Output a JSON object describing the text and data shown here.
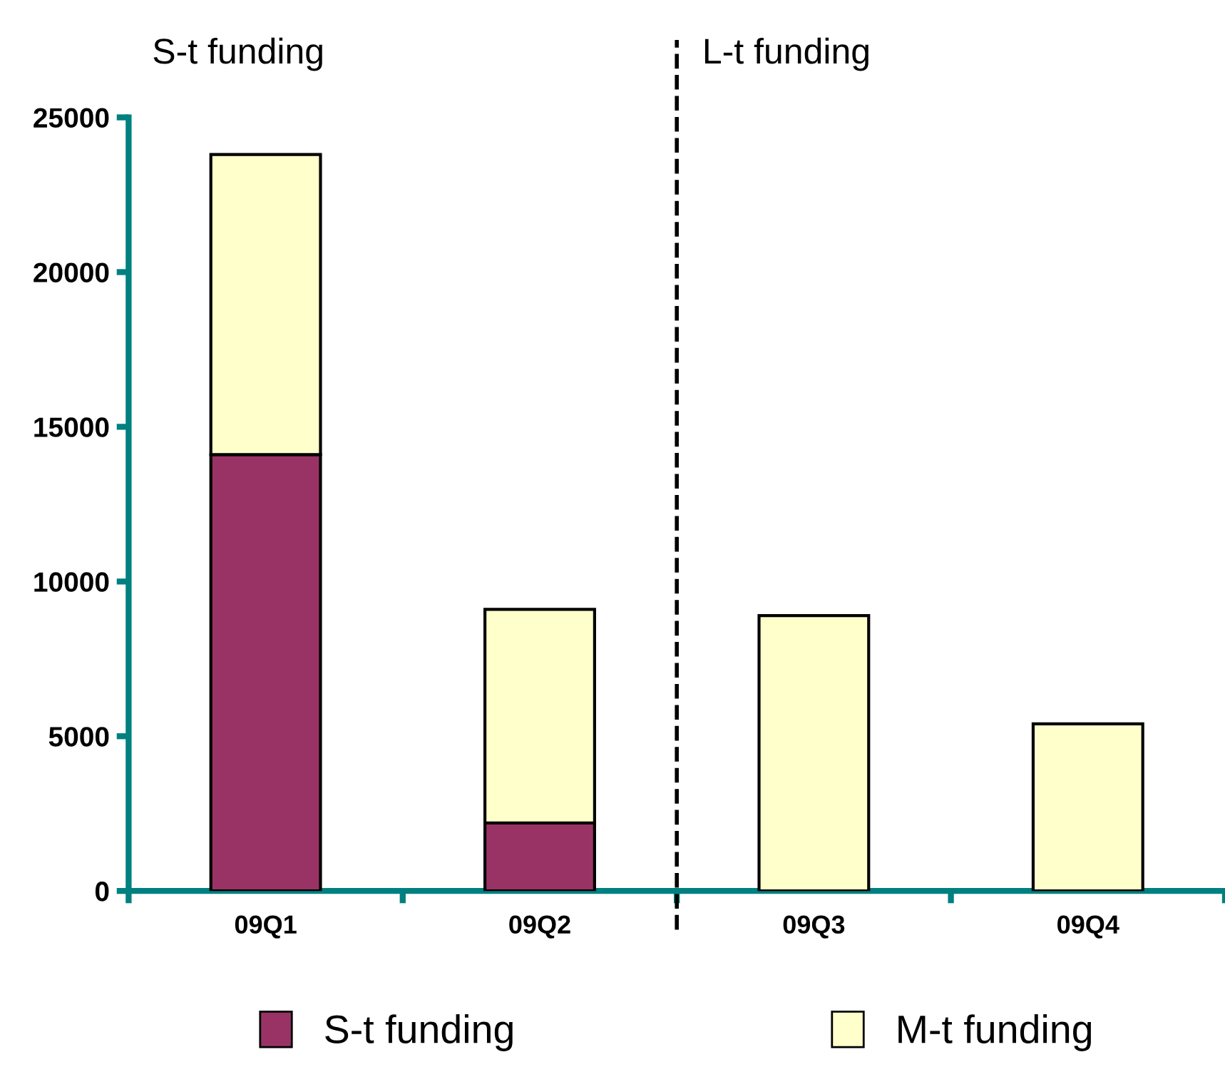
{
  "chart_data": {
    "type": "bar",
    "stacked": true,
    "categories": [
      "09Q1",
      "09Q2",
      "09Q3",
      "09Q4"
    ],
    "series": [
      {
        "name": "S-t funding",
        "color": "#993366",
        "values": [
          14100,
          2200,
          0,
          0
        ]
      },
      {
        "name": "M-t funding",
        "color": "#ffffcc",
        "values": [
          9700,
          6900,
          8900,
          5400
        ]
      }
    ],
    "ylim": [
      0,
      25000
    ],
    "yticks": [
      0,
      5000,
      10000,
      15000,
      20000,
      25000
    ],
    "annotations": [
      "S-t funding",
      "L-t funding"
    ],
    "grid": false,
    "legend": "bottom"
  }
}
